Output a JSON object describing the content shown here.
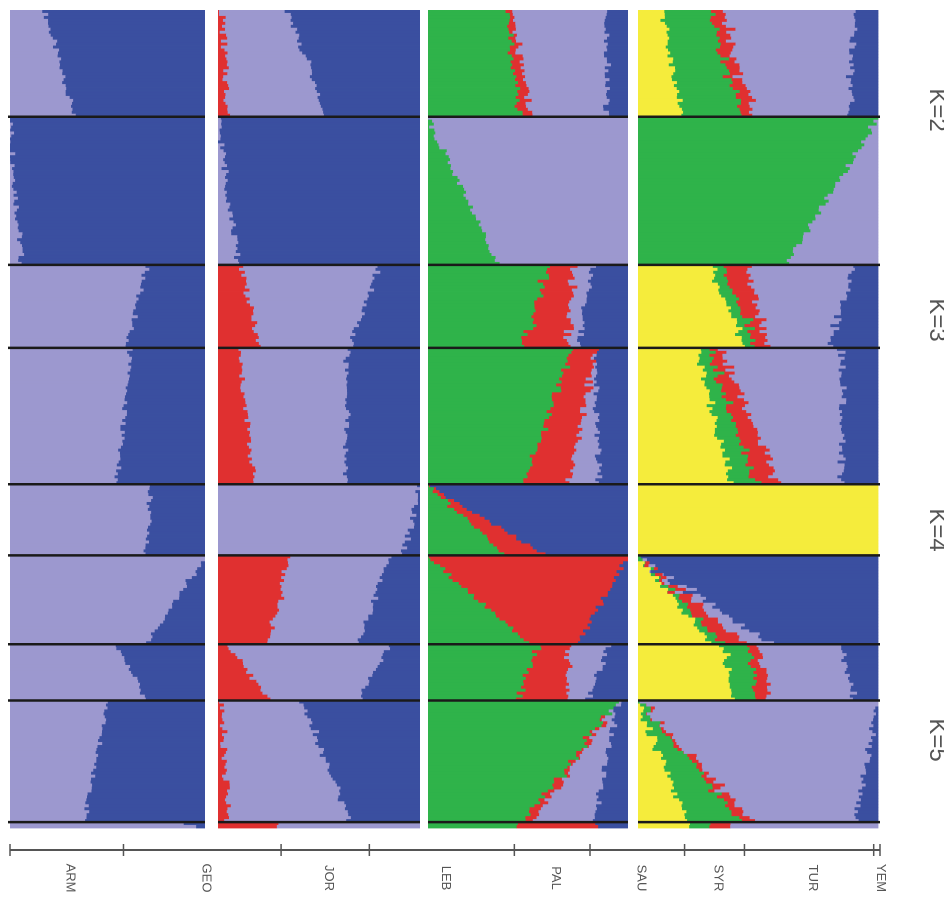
{
  "chart_data": {
    "type": "bar",
    "stacked": true,
    "orientation": "rotated-90",
    "description_of_axes": "Admixture proportions (0-1) per individual, grouped by population; panels for K=2..5",
    "populations": [
      {
        "name": "ARM",
        "n": 36
      },
      {
        "name": "GEO",
        "n": 50
      },
      {
        "name": "JOR",
        "n": 28
      },
      {
        "name": "LEB",
        "n": 46
      },
      {
        "name": "PAL",
        "n": 24
      },
      {
        "name": "SAU",
        "n": 30
      },
      {
        "name": "SYR",
        "n": 19
      },
      {
        "name": "TUR",
        "n": 41
      },
      {
        "name": "YEM",
        "n": 2
      }
    ],
    "colors": {
      "dark_blue": "#3a4fa0",
      "lavender": "#9c98cf",
      "red": "#e03030",
      "green": "#2fb34a",
      "yellow": "#f5ec3c"
    },
    "panels": [
      {
        "label": "K=2",
        "clusters": [
          "lavender",
          "dark_blue"
        ],
        "populations": {
          "ARM": [
            [
              0.18,
              0.82
            ],
            [
              0.33,
              0.67
            ]
          ],
          "GEO": [
            [
              0.0,
              1.0
            ],
            [
              0.06,
              0.94
            ]
          ],
          "JOR": [
            [
              0.7,
              0.3
            ],
            [
              0.6,
              0.4
            ]
          ],
          "LEB": [
            [
              0.62,
              0.38
            ],
            [
              0.55,
              0.45
            ]
          ],
          "PAL": [
            [
              0.72,
              0.28
            ],
            [
              0.7,
              0.3
            ]
          ],
          "SAU": [
            [
              1.0,
              0.0
            ],
            [
              0.7,
              0.3
            ]
          ],
          "SYR": [
            [
              0.55,
              0.45
            ],
            [
              0.7,
              0.3
            ]
          ],
          "TUR": [
            [
              0.5,
              0.5
            ],
            [
              0.38,
              0.62
            ]
          ],
          "YEM": [
            [
              0.9,
              0.1
            ],
            [
              0.95,
              0.05
            ]
          ]
        }
      },
      {
        "label": "K=3",
        "clusters": [
          "red",
          "lavender",
          "dark_blue"
        ],
        "populations": {
          "ARM": [
            [
              0.02,
              0.33,
              0.65
            ],
            [
              0.05,
              0.48,
              0.47
            ]
          ],
          "GEO": [
            [
              0.0,
              0.0,
              1.0
            ],
            [
              0.0,
              0.1,
              0.9
            ]
          ],
          "JOR": [
            [
              0.12,
              0.68,
              0.2
            ],
            [
              0.2,
              0.45,
              0.35
            ]
          ],
          "LEB": [
            [
              0.1,
              0.54,
              0.36
            ],
            [
              0.18,
              0.45,
              0.37
            ]
          ],
          "PAL": [
            [
              0.0,
              1.0,
              0.0
            ],
            [
              0.0,
              0.92,
              0.08
            ]
          ],
          "SAU": [
            [
              0.35,
              0.5,
              0.15
            ],
            [
              0.25,
              0.45,
              0.3
            ]
          ],
          "SYR": [
            [
              0.05,
              0.8,
              0.15
            ],
            [
              0.25,
              0.45,
              0.3
            ]
          ],
          "TUR": [
            [
              0.02,
              0.4,
              0.58
            ],
            [
              0.05,
              0.6,
              0.35
            ]
          ],
          "YEM": [
            [
              0.3,
              0.7,
              0.0
            ],
            [
              0.3,
              0.7,
              0.0
            ]
          ]
        }
      },
      {
        "label": "K=4",
        "clusters": [
          "green",
          "red",
          "lavender",
          "dark_blue"
        ],
        "populations": {
          "ARM": [
            [
              0.4,
              0.03,
              0.47,
              0.1
            ],
            [
              0.46,
              0.05,
              0.38,
              0.11
            ]
          ],
          "GEO": [
            [
              0.0,
              0.0,
              1.0,
              0.0
            ],
            [
              0.35,
              0.0,
              0.65,
              0.0
            ]
          ],
          "JOR": [
            [
              0.6,
              0.12,
              0.1,
              0.18
            ],
            [
              0.48,
              0.22,
              0.05,
              0.25
            ]
          ],
          "LEB": [
            [
              0.72,
              0.12,
              0.0,
              0.16
            ],
            [
              0.48,
              0.22,
              0.15,
              0.15
            ]
          ],
          "PAL": [
            [
              0.0,
              0.0,
              0.0,
              1.0
            ],
            [
              0.38,
              0.2,
              0.0,
              0.42
            ]
          ],
          "SAU": [
            [
              0.0,
              1.0,
              0.0,
              0.0
            ],
            [
              0.5,
              0.25,
              0.0,
              0.25
            ]
          ],
          "SYR": [
            [
              0.55,
              0.15,
              0.2,
              0.1
            ],
            [
              0.45,
              0.25,
              0.1,
              0.2
            ]
          ],
          "TUR": [
            [
              0.95,
              0.0,
              0.0,
              0.05
            ],
            [
              0.48,
              0.05,
              0.3,
              0.17
            ]
          ],
          "YEM": [
            [
              0.45,
              0.4,
              0.0,
              0.15
            ],
            [
              0.45,
              0.4,
              0.0,
              0.15
            ]
          ]
        }
      },
      {
        "label": "K=5",
        "clusters": [
          "yellow",
          "green",
          "red",
          "lavender",
          "dark_blue"
        ],
        "populations": {
          "ARM": [
            [
              0.1,
              0.2,
              0.05,
              0.55,
              0.1
            ],
            [
              0.18,
              0.25,
              0.05,
              0.4,
              0.12
            ]
          ],
          "GEO": [
            [
              0.0,
              1.0,
              0.0,
              0.0,
              0.0
            ],
            [
              0.0,
              0.62,
              0.0,
              0.38,
              0.0
            ]
          ],
          "JOR": [
            [
              0.3,
              0.05,
              0.1,
              0.45,
              0.1
            ],
            [
              0.45,
              0.05,
              0.05,
              0.25,
              0.2
            ]
          ],
          "LEB": [
            [
              0.25,
              0.05,
              0.05,
              0.5,
              0.15
            ],
            [
              0.38,
              0.1,
              0.1,
              0.27,
              0.15
            ]
          ],
          "PAL": [
            [
              1.0,
              0.0,
              0.0,
              0.0,
              0.0
            ],
            [
              1.0,
              0.0,
              0.0,
              0.0,
              0.0
            ]
          ],
          "SAU": [
            [
              0.0,
              0.0,
              0.0,
              0.0,
              1.0
            ],
            [
              0.3,
              0.05,
              0.1,
              0.1,
              0.45
            ]
          ],
          "SYR": [
            [
              0.35,
              0.1,
              0.05,
              0.35,
              0.15
            ],
            [
              0.4,
              0.1,
              0.05,
              0.35,
              0.1
            ]
          ],
          "TUR": [
            [
              0.0,
              0.0,
              0.0,
              1.0,
              0.0
            ],
            [
              0.2,
              0.22,
              0.05,
              0.43,
              0.1
            ]
          ],
          "YEM": [
            [
              0.2,
              0.1,
              0.1,
              0.6,
              0.0
            ],
            [
              0.2,
              0.1,
              0.1,
              0.6,
              0.0
            ]
          ]
        }
      }
    ]
  }
}
